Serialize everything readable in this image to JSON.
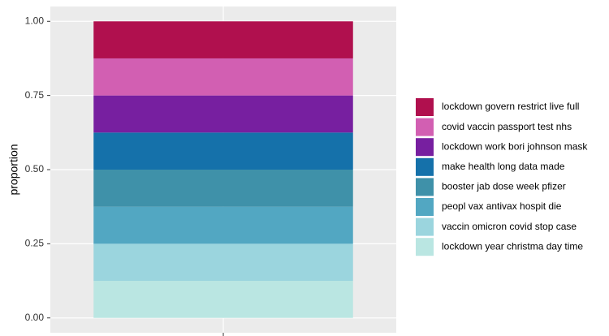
{
  "chart_data": {
    "type": "stacked_bar",
    "y_label": "proportion",
    "categories": [
      null
    ],
    "series": [
      {
        "name": "lockdown govern restrict live full",
        "color": "#b0104e",
        "values": [
          0.125
        ]
      },
      {
        "name": "covid vaccin passport test nhs",
        "color": "#d25fb2",
        "values": [
          0.125
        ]
      },
      {
        "name": "lockdown work bori johnson mask",
        "color": "#771fa0",
        "values": [
          0.125
        ]
      },
      {
        "name": "make health long data made",
        "color": "#1571aa",
        "values": [
          0.125
        ]
      },
      {
        "name": "booster jab dose week pfizer",
        "color": "#3f91a9",
        "values": [
          0.125
        ]
      },
      {
        "name": "peopl vax antivax hospit die",
        "color": "#52a7c2",
        "values": [
          0.125
        ]
      },
      {
        "name": "vaccin omicron covid stop case",
        "color": "#9bd5de",
        "values": [
          0.125
        ]
      },
      {
        "name": "lockdown year christma day time",
        "color": "#bae6e2",
        "values": [
          0.125
        ]
      }
    ],
    "ylim": [
      -0.05,
      1.05
    ],
    "yticks": [
      {
        "value": 0,
        "label": "0.00"
      },
      {
        "value": 0.25,
        "label": "0.25"
      },
      {
        "value": 0.5,
        "label": "0.50"
      },
      {
        "value": 0.75,
        "label": "0.75"
      },
      {
        "value": 1,
        "label": "1.00"
      }
    ],
    "grid": true,
    "legend": "right"
  }
}
